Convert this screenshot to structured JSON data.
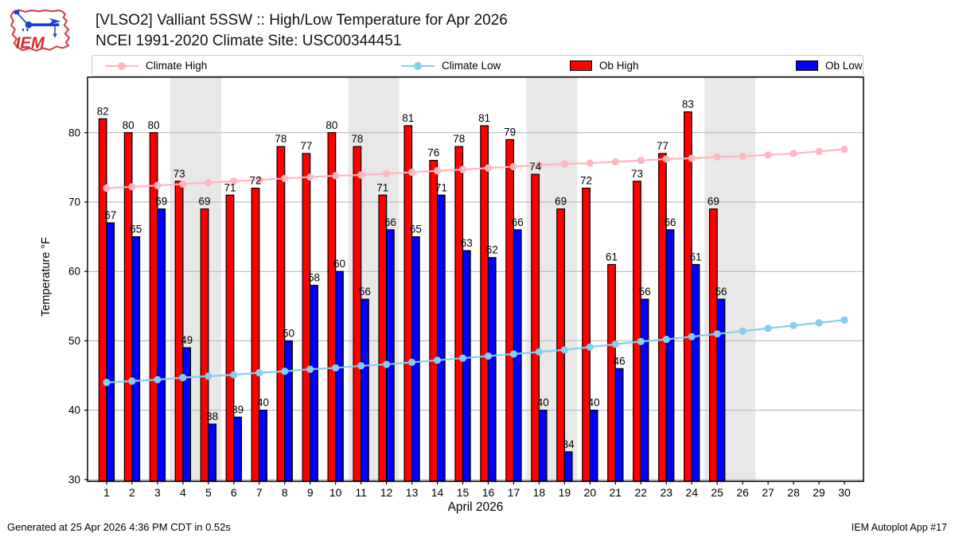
{
  "header": {
    "title_line1": "[VLSO2] Valliant 5SSW :: High/Low Temperature for Apr 2026",
    "title_line2": "NCEI 1991-2020 Climate Site: USC00344451"
  },
  "logo": {
    "text": "IEM"
  },
  "legend": {
    "items": [
      {
        "label": "Climate High",
        "marker": "line-dot",
        "color": "#ffb6c1"
      },
      {
        "label": "Climate Low",
        "marker": "line-dot",
        "color": "#87ceeb"
      },
      {
        "label": "Ob High",
        "marker": "swatch",
        "color": "#ff0000"
      },
      {
        "label": "Ob Low",
        "marker": "swatch",
        "color": "#0000ff"
      }
    ]
  },
  "footer": {
    "generated": "Generated at 25 Apr 2026 4:36 PM CDT in 0.52s",
    "app": "IEM Autoplot App #17"
  },
  "chart_data": {
    "type": "bar",
    "title": "[VLSO2] Valliant 5SSW :: High/Low Temperature for Apr 2026",
    "subtitle": "NCEI 1991-2020 Climate Site: USC00344451",
    "xlabel": "April 2026",
    "ylabel": "Temperature °F",
    "x": [
      1,
      2,
      3,
      4,
      5,
      6,
      7,
      8,
      9,
      10,
      11,
      12,
      13,
      14,
      15,
      16,
      17,
      18,
      19,
      20,
      21,
      22,
      23,
      24,
      25,
      26,
      27,
      28,
      29,
      30
    ],
    "ylim": [
      29.75,
      88
    ],
    "yticks": [
      30,
      40,
      50,
      60,
      70,
      80
    ],
    "grid": "horizontal",
    "legend_position": "top",
    "weekend_shading": [
      [
        3.5,
        5.5
      ],
      [
        10.5,
        12.5
      ],
      [
        17.5,
        19.5
      ],
      [
        24.5,
        26.5
      ]
    ],
    "shading_color": "#e8e8e8",
    "series": [
      {
        "name": "Climate High",
        "type": "line",
        "color": "#ffb6c1",
        "values": [
          72.0,
          72.2,
          72.4,
          72.6,
          72.8,
          73.0,
          73.2,
          73.4,
          73.6,
          73.8,
          73.9,
          74.1,
          74.3,
          74.5,
          74.7,
          74.9,
          75.1,
          75.3,
          75.5,
          75.6,
          75.8,
          76.0,
          76.2,
          76.3,
          76.5,
          76.6,
          76.8,
          77.0,
          77.3,
          77.6
        ]
      },
      {
        "name": "Climate Low",
        "type": "line",
        "color": "#87ceeb",
        "values": [
          44.0,
          44.2,
          44.4,
          44.7,
          44.9,
          45.1,
          45.4,
          45.6,
          45.9,
          46.1,
          46.4,
          46.6,
          46.9,
          47.2,
          47.5,
          47.8,
          48.1,
          48.4,
          48.7,
          49.1,
          49.5,
          49.9,
          50.2,
          50.6,
          51.0,
          51.4,
          51.8,
          52.2,
          52.6,
          53.0
        ]
      },
      {
        "name": "Ob High",
        "type": "bar",
        "color": "#ff0000",
        "value_labels": true,
        "values": [
          82,
          80,
          80,
          73,
          69,
          71,
          72,
          78,
          77,
          80,
          78,
          71,
          81,
          76,
          78,
          81,
          79,
          74,
          69,
          72,
          61,
          73,
          77,
          83,
          69,
          null,
          null,
          null,
          null,
          null
        ]
      },
      {
        "name": "Ob Low",
        "type": "bar",
        "color": "#0000ff",
        "value_labels": true,
        "values": [
          67,
          65,
          69,
          49,
          38,
          39,
          40,
          50,
          58,
          60,
          56,
          66,
          65,
          71,
          63,
          62,
          66,
          40,
          34,
          40,
          46,
          56,
          66,
          61,
          56,
          null,
          null,
          null,
          null,
          null
        ]
      }
    ]
  }
}
